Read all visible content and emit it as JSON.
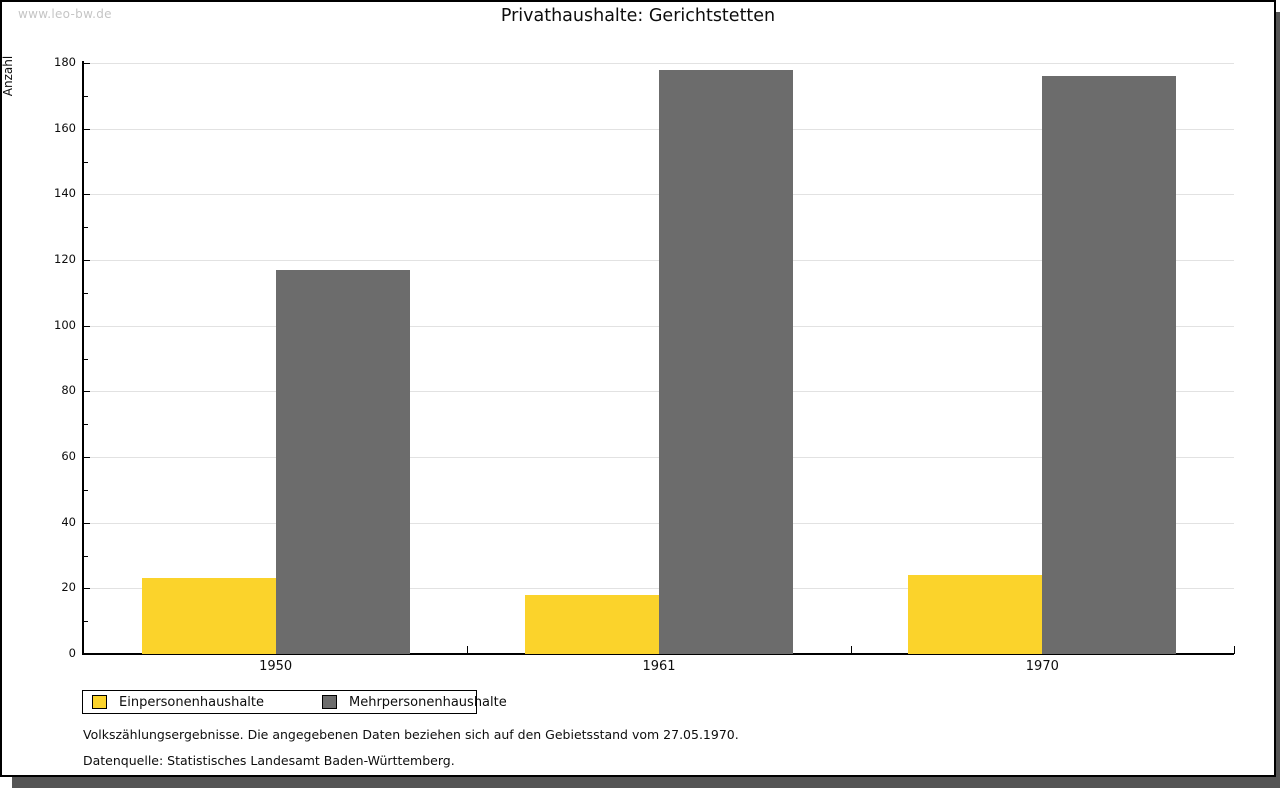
{
  "watermark": "www.leo-bw.de",
  "title": "Privathaushalte: Gerichtstetten",
  "chart_data": {
    "type": "bar",
    "title": "Privathaushalte: Gerichtstetten",
    "categories": [
      "1950",
      "1961",
      "1970"
    ],
    "series": [
      {
        "name": "Einpersonenhaushalte",
        "color": "#fbd32b",
        "values": [
          23,
          18,
          24
        ]
      },
      {
        "name": "Mehrpersonenhaushalte",
        "color": "#6c6c6c",
        "values": [
          117,
          178,
          176
        ]
      }
    ],
    "xlabel": "",
    "ylabel": "Anzahl",
    "ylim": [
      0,
      180
    ],
    "ytick_step": 20,
    "yminor_step": 10,
    "grid": true,
    "legend_position": "bottom-left"
  },
  "legend": {
    "items": [
      {
        "label": "Einpersonenhaushalte"
      },
      {
        "label": "Mehrpersonenhaushalte"
      }
    ]
  },
  "footnotes": [
    "Volkszählungsergebnisse. Die angegebenen Daten beziehen sich auf den Gebietsstand vom 27.05.1970.",
    "Datenquelle: Statistisches Landesamt Baden-Württemberg."
  ],
  "colors": {
    "series1": "#fbd32b",
    "series2": "#6c6c6c",
    "gridline": "#e2e2e2",
    "shadow": "#555555",
    "watermark": "#c5c5c5",
    "axis": "#000000"
  }
}
